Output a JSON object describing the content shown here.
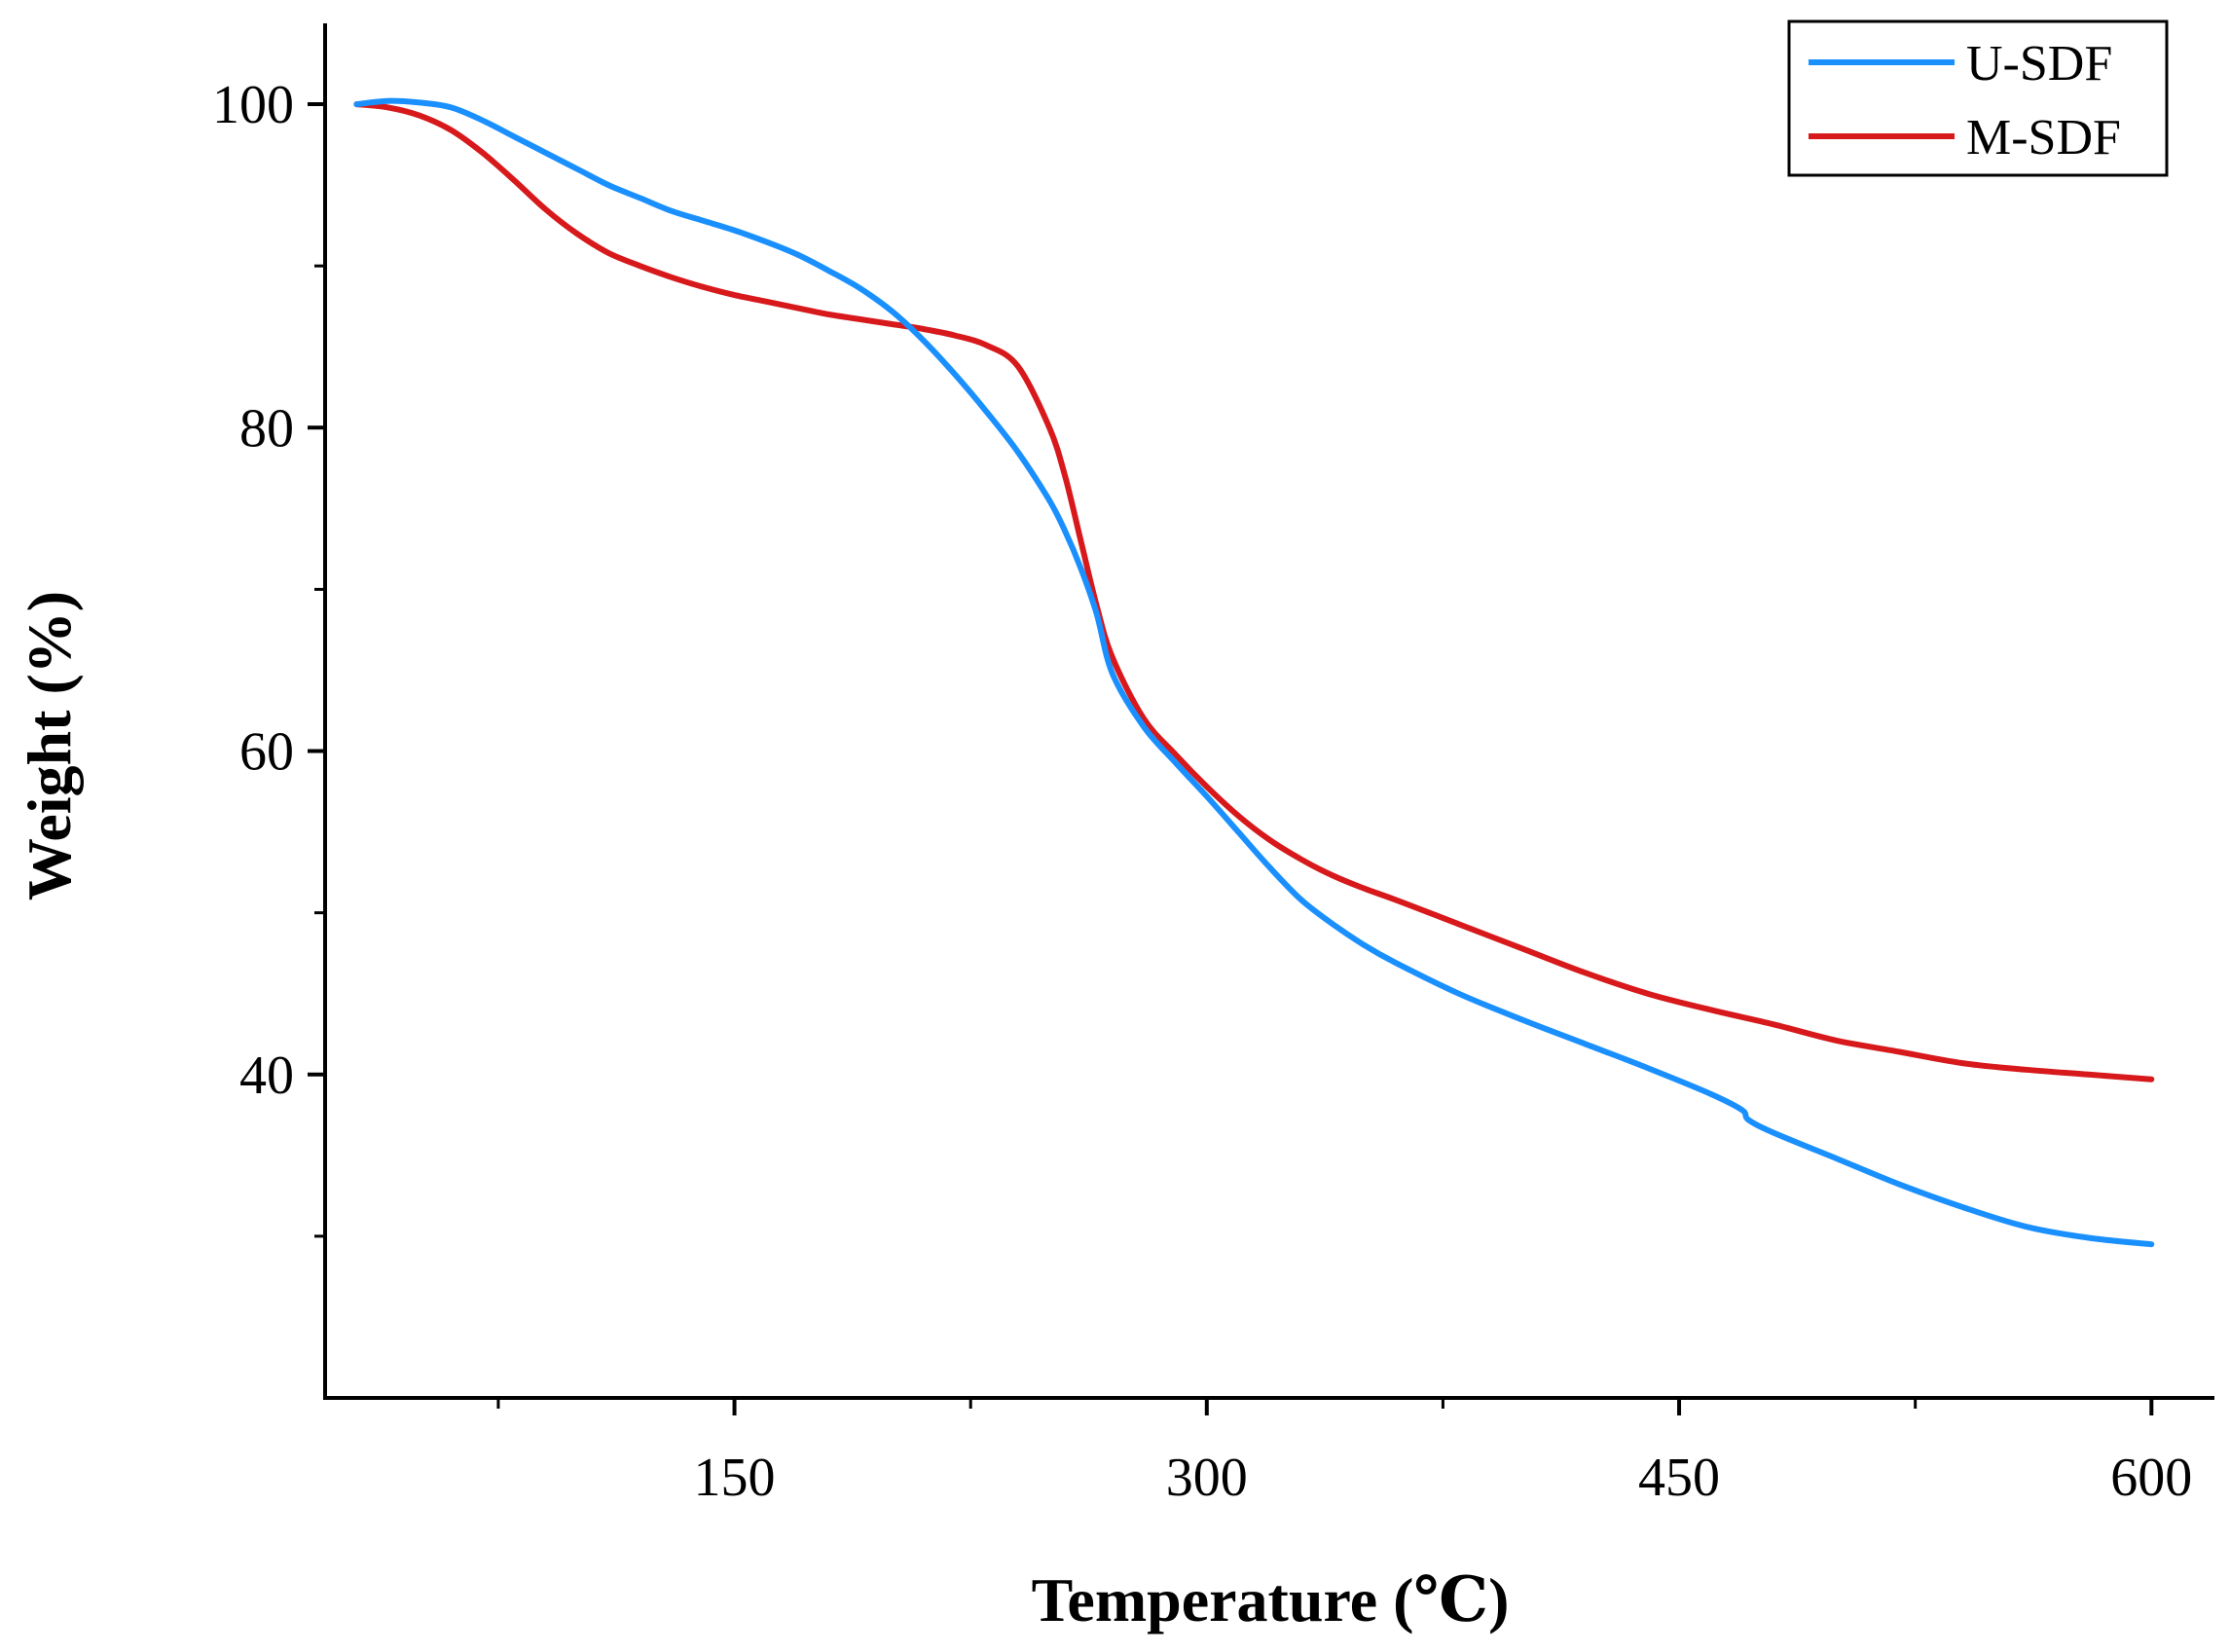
{
  "chart_data": {
    "type": "line",
    "title": "",
    "xlabel": "Temperature (℃)",
    "ylabel": "Weight (%)",
    "xlim": [
      20,
      620
    ],
    "ylim": [
      20,
      105
    ],
    "xticks": [
      {
        "value": 150,
        "label": "150"
      },
      {
        "value": 300,
        "label": "300"
      },
      {
        "value": 450,
        "label": "450"
      },
      {
        "value": 600,
        "label": "600"
      }
    ],
    "x_minor_ticks": [
      75,
      225,
      375,
      525
    ],
    "yticks": [
      {
        "value": 40,
        "label": "40"
      },
      {
        "value": 60,
        "label": "60"
      },
      {
        "value": 80,
        "label": "80"
      },
      {
        "value": 100,
        "label": "100"
      }
    ],
    "y_minor_ticks": [
      30,
      50,
      70,
      90
    ],
    "legend_position": "top-right",
    "series": [
      {
        "name": "U-SDF",
        "color": "#1a90ff",
        "x": [
          30,
          40,
          50,
          60,
          70,
          80,
          90,
          100,
          110,
          120,
          130,
          140,
          150,
          160,
          170,
          180,
          190,
          200,
          210,
          220,
          230,
          240,
          250,
          255,
          260,
          265,
          270,
          280,
          290,
          300,
          310,
          320,
          330,
          340,
          350,
          360,
          380,
          400,
          420,
          440,
          460,
          470,
          472,
          480,
          500,
          520,
          540,
          560,
          580,
          600
        ],
        "values": [
          100.0,
          100.2,
          100.1,
          99.8,
          99.0,
          98.0,
          97.0,
          96.0,
          95.0,
          94.2,
          93.4,
          92.8,
          92.2,
          91.5,
          90.7,
          89.7,
          88.6,
          87.2,
          85.4,
          83.3,
          81.0,
          78.5,
          75.5,
          73.6,
          71.3,
          68.5,
          64.8,
          61.5,
          59.3,
          57.2,
          55.0,
          52.8,
          50.8,
          49.3,
          48.0,
          46.9,
          45.0,
          43.4,
          41.9,
          40.4,
          38.8,
          37.8,
          37.2,
          36.4,
          34.8,
          33.2,
          31.8,
          30.6,
          29.9,
          29.5
        ]
      },
      {
        "name": "M-SDF",
        "color": "#d7191c",
        "x": [
          30,
          40,
          50,
          60,
          70,
          80,
          90,
          100,
          110,
          120,
          130,
          140,
          150,
          160,
          170,
          180,
          190,
          200,
          210,
          220,
          230,
          240,
          250,
          255,
          260,
          265,
          270,
          280,
          290,
          300,
          310,
          320,
          330,
          340,
          350,
          360,
          380,
          400,
          420,
          440,
          460,
          480,
          500,
          520,
          540,
          560,
          580,
          600
        ],
        "values": [
          100.0,
          99.8,
          99.3,
          98.4,
          97.0,
          95.3,
          93.5,
          92.0,
          90.8,
          90.0,
          89.3,
          88.7,
          88.2,
          87.8,
          87.4,
          87.0,
          86.7,
          86.4,
          86.1,
          85.7,
          85.1,
          83.8,
          80.0,
          77.0,
          73.0,
          69.0,
          65.8,
          62.0,
          59.8,
          57.8,
          56.0,
          54.5,
          53.3,
          52.3,
          51.5,
          50.8,
          49.3,
          47.8,
          46.3,
          45.0,
          44.0,
          43.1,
          42.1,
          41.4,
          40.7,
          40.3,
          40.0,
          39.7
        ]
      }
    ]
  }
}
